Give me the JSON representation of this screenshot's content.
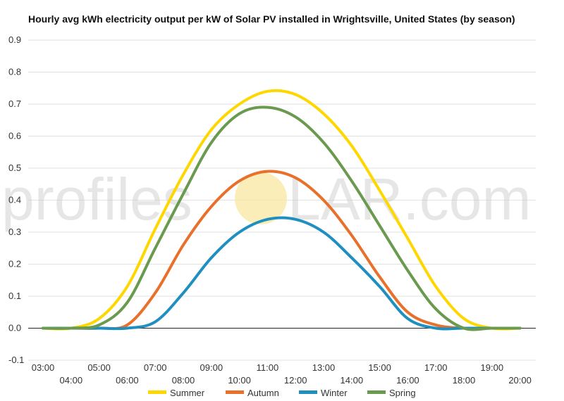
{
  "watermark": {
    "left": "profiles",
    "right": "LAR.com",
    "sun_color": "#f9e7a0"
  },
  "chart_data": {
    "type": "line",
    "title": "Hourly avg kWh electricity output per kW of Solar PV installed in Wrightsville, United States (by season)",
    "xlabel": "",
    "ylabel": "",
    "ylim": [
      -0.1,
      0.9
    ],
    "yticks": [
      "-0.1",
      "0.0",
      "0.1",
      "0.2",
      "0.3",
      "0.4",
      "0.5",
      "0.6",
      "0.7",
      "0.8",
      "0.9"
    ],
    "x": [
      "03:00",
      "04:00",
      "05:00",
      "06:00",
      "07:00",
      "08:00",
      "09:00",
      "10:00",
      "11:00",
      "12:00",
      "13:00",
      "14:00",
      "15:00",
      "16:00",
      "17:00",
      "18:00",
      "19:00",
      "20:00"
    ],
    "grid": true,
    "legend_position": "bottom",
    "series": [
      {
        "name": "Summer",
        "color": "#ffd700",
        "values": [
          0.0,
          0.0,
          0.03,
          0.13,
          0.31,
          0.48,
          0.62,
          0.7,
          0.74,
          0.73,
          0.67,
          0.57,
          0.43,
          0.28,
          0.13,
          0.03,
          0.0,
          0.0
        ]
      },
      {
        "name": "Autumn",
        "color": "#e8702a",
        "values": [
          0.0,
          0.0,
          0.0,
          0.01,
          0.11,
          0.26,
          0.38,
          0.46,
          0.49,
          0.47,
          0.4,
          0.29,
          0.16,
          0.05,
          0.01,
          0.0,
          0.0,
          0.0
        ]
      },
      {
        "name": "Winter",
        "color": "#1f8fc0",
        "values": [
          0.0,
          0.0,
          0.0,
          0.0,
          0.02,
          0.11,
          0.22,
          0.3,
          0.34,
          0.34,
          0.3,
          0.22,
          0.13,
          0.03,
          0.0,
          0.0,
          0.0,
          0.0
        ]
      },
      {
        "name": "Spring",
        "color": "#6a9a4e",
        "values": [
          0.0,
          0.0,
          0.01,
          0.08,
          0.25,
          0.42,
          0.58,
          0.67,
          0.69,
          0.66,
          0.58,
          0.46,
          0.32,
          0.18,
          0.06,
          0.0,
          0.0,
          0.0
        ]
      }
    ]
  }
}
